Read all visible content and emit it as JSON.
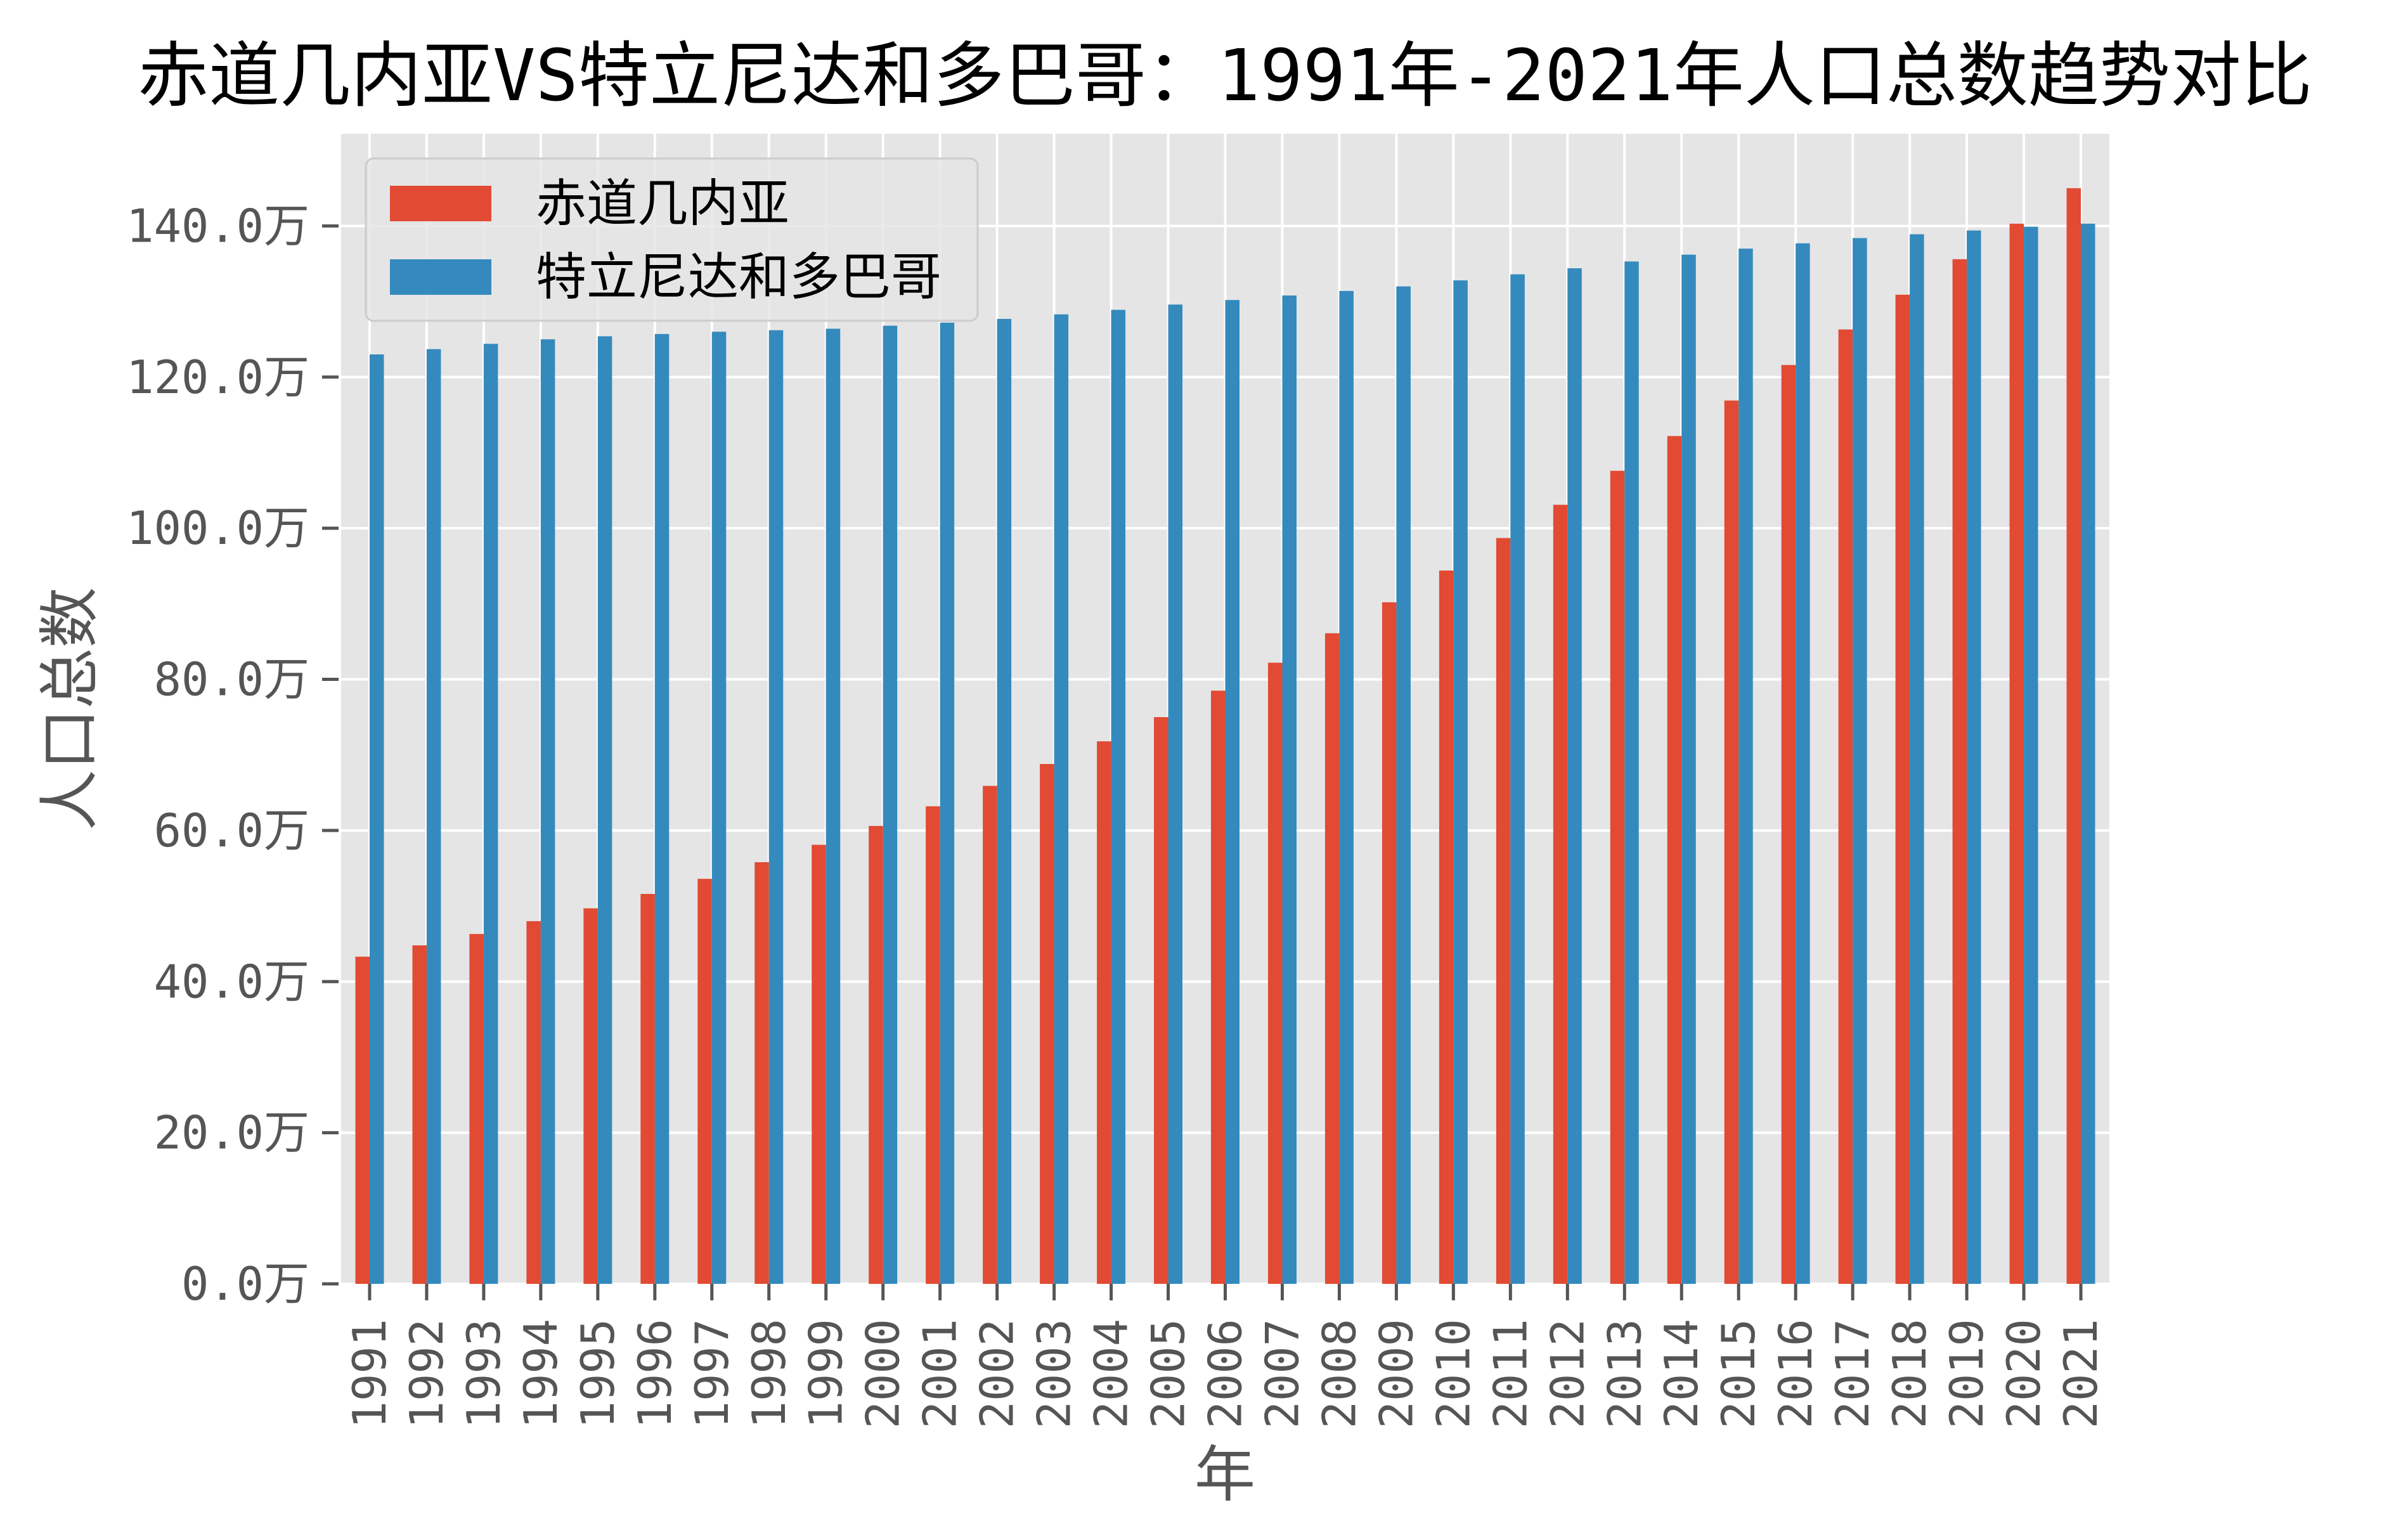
{
  "chart_data": {
    "type": "bar",
    "title": "赤道几内亚VS特立尼达和多巴哥：1991年-2021年人口总数趋势对比",
    "xlabel": "年",
    "ylabel": "人口总数",
    "categories": [
      "1991",
      "1992",
      "1993",
      "1994",
      "1995",
      "1996",
      "1997",
      "1998",
      "1999",
      "2000",
      "2001",
      "2002",
      "2003",
      "2004",
      "2005",
      "2006",
      "2007",
      "2008",
      "2009",
      "2010",
      "2011",
      "2012",
      "2013",
      "2014",
      "2015",
      "2016",
      "2017",
      "2018",
      "2019",
      "2020",
      "2021"
    ],
    "series": [
      {
        "name": "赤道几内亚",
        "color": "#E24A33",
        "values": [
          43.3,
          44.8,
          46.3,
          48.0,
          49.7,
          51.6,
          53.6,
          55.8,
          58.1,
          60.6,
          63.2,
          65.9,
          68.8,
          71.8,
          75.0,
          78.5,
          82.2,
          86.1,
          90.2,
          94.4,
          98.7,
          103.1,
          107.6,
          112.2,
          116.9,
          121.6,
          126.3,
          130.9,
          135.6,
          140.3,
          145.0
        ]
      },
      {
        "name": "特立尼达和多巴哥",
        "color": "#348ABD",
        "values": [
          123.0,
          123.7,
          124.4,
          125.0,
          125.4,
          125.7,
          126.0,
          126.2,
          126.4,
          126.8,
          127.2,
          127.7,
          128.3,
          128.9,
          129.6,
          130.2,
          130.8,
          131.4,
          132.0,
          132.8,
          133.6,
          134.4,
          135.3,
          136.2,
          137.0,
          137.7,
          138.4,
          138.9,
          139.4,
          139.9,
          140.3
        ]
      }
    ],
    "ylim": [
      0,
      152.2
    ],
    "y_ticks": [
      0,
      20,
      40,
      60,
      80,
      100,
      120,
      140
    ],
    "y_tick_labels": [
      "0.0万",
      "20.0万",
      "40.0万",
      "60.0万",
      "80.0万",
      "100.0万",
      "120.0万",
      "140.0万"
    ],
    "grid": true,
    "legend_position": "top-left",
    "background_color": "#E5E5E5",
    "grid_color": "#FFFFFF"
  }
}
